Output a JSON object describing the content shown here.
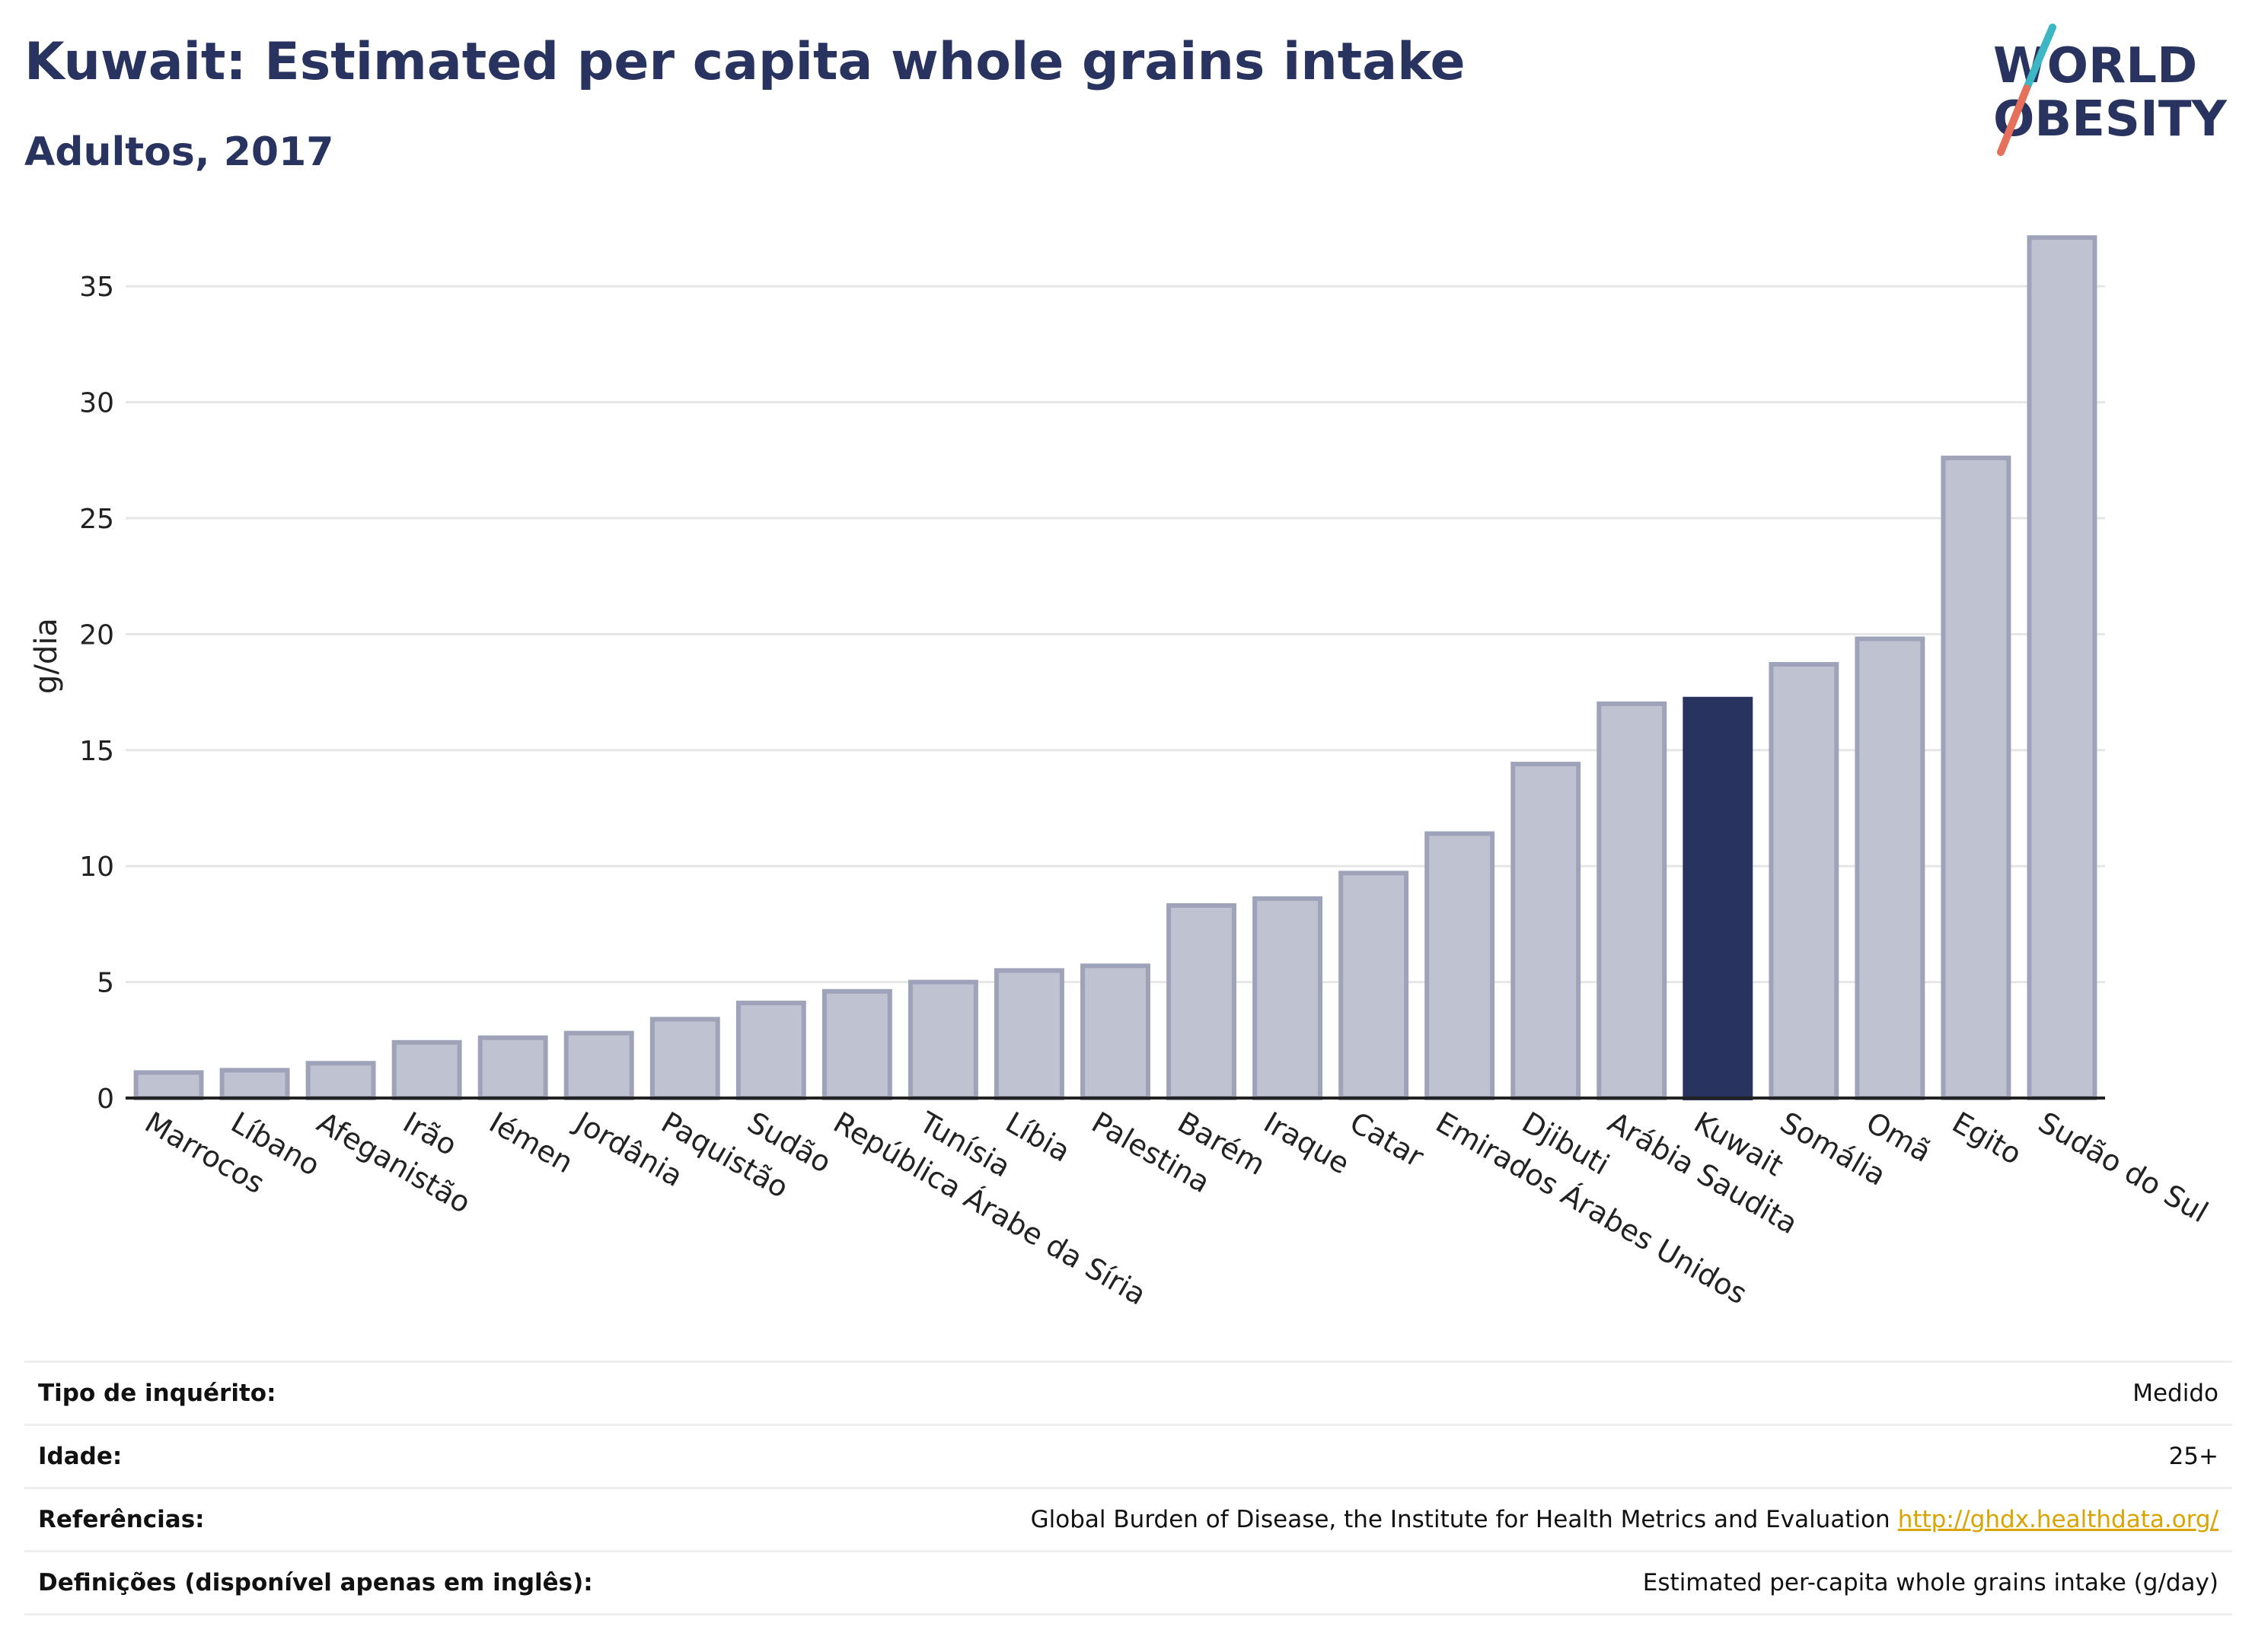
{
  "header": {
    "title": "Kuwait: Estimated per capita whole grains intake",
    "subtitle": "Adultos, 2017"
  },
  "logo": {
    "line1": "WORLD",
    "line2": "OBESITY"
  },
  "colors": {
    "bar": "#bfc2d1",
    "bar_outline": "#9ea3ba",
    "highlight": "#28335f",
    "grid": "#e6e6e6",
    "text_dark": "#28335f",
    "logo_teal": "#3cb7c3",
    "logo_coral": "#e5705c",
    "link": "#d9a300"
  },
  "chart_data": {
    "type": "bar",
    "title": "Kuwait: Estimated per capita whole grains intake",
    "subtitle": "Adultos, 2017",
    "xlabel": "",
    "ylabel": "g/dia",
    "ylim": [
      0,
      37.5
    ],
    "yticks": [
      0,
      5,
      10,
      15,
      20,
      25,
      30,
      35
    ],
    "grid": true,
    "highlight": "Kuwait",
    "categories": [
      "Marrocos",
      "Líbano",
      "Afeganistão",
      "Irão",
      "Iémen",
      "Jordânia",
      "Paquistão",
      "Sudão",
      "República Árabe da Síria",
      "Tunísia",
      "Líbia",
      "Palestina",
      "Barém",
      "Iraque",
      "Catar",
      "Emirados Árabes Unidos",
      "Djibuti",
      "Arábia Saudita",
      "Kuwait",
      "Somália",
      "Omã",
      "Egito",
      "Sudão do Sul"
    ],
    "values": [
      1.1,
      1.2,
      1.5,
      2.4,
      2.6,
      2.8,
      3.4,
      4.1,
      4.6,
      5.0,
      5.5,
      5.7,
      8.3,
      8.6,
      9.7,
      11.4,
      14.4,
      17.0,
      17.2,
      18.7,
      19.8,
      27.6,
      37.1
    ]
  },
  "meta": {
    "rows": [
      {
        "key": "Tipo de inquérito:",
        "value": "Medido"
      },
      {
        "key": "Idade:",
        "value": "25+"
      },
      {
        "key": "Referências:",
        "value": "Global Burden of Disease, the Institute for Health Metrics and Evaluation",
        "link": "http://ghdx.healthdata.org/"
      },
      {
        "key": "Definições (disponível apenas em inglês):",
        "value": "Estimated per-capita whole grains intake (g/day)"
      }
    ]
  }
}
